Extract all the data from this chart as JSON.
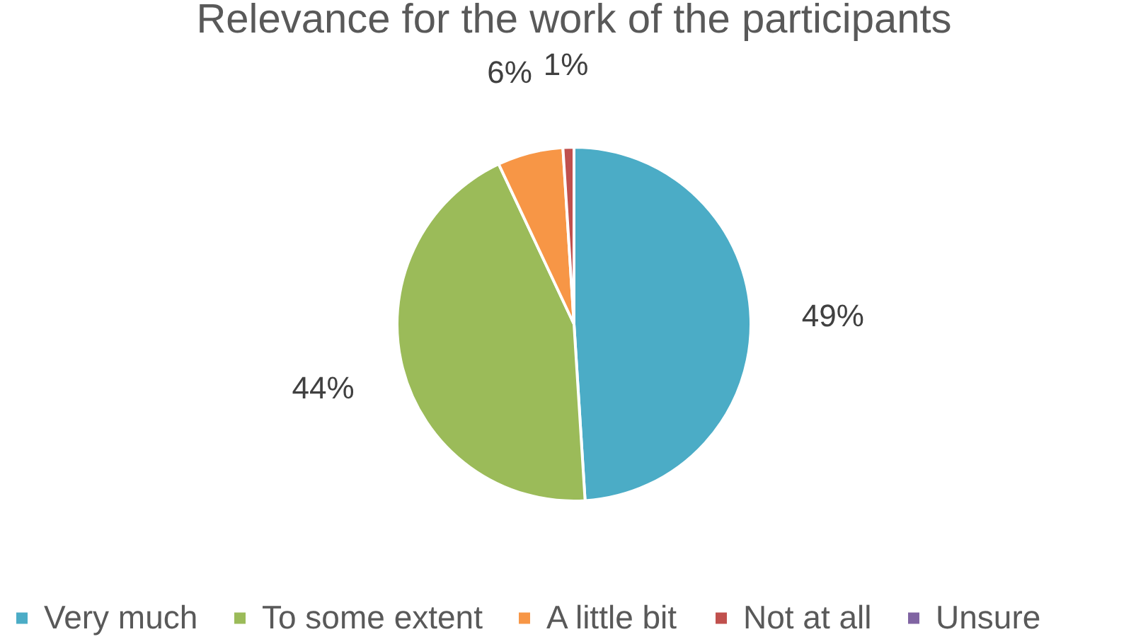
{
  "chart_data": {
    "type": "pie",
    "title": "Relevance for the work of the participants",
    "categories": [
      "Very much",
      "To some extent",
      "A little bit",
      "Not at all",
      "Unsure"
    ],
    "values": [
      49,
      44,
      6,
      1,
      0
    ],
    "colors": [
      "#4bacc6",
      "#9bbb59",
      "#f79646",
      "#c0504d",
      "#8064a2"
    ],
    "value_labels": [
      "49%",
      "44%",
      "6%",
      "1%",
      null
    ],
    "legend": "bottom"
  }
}
